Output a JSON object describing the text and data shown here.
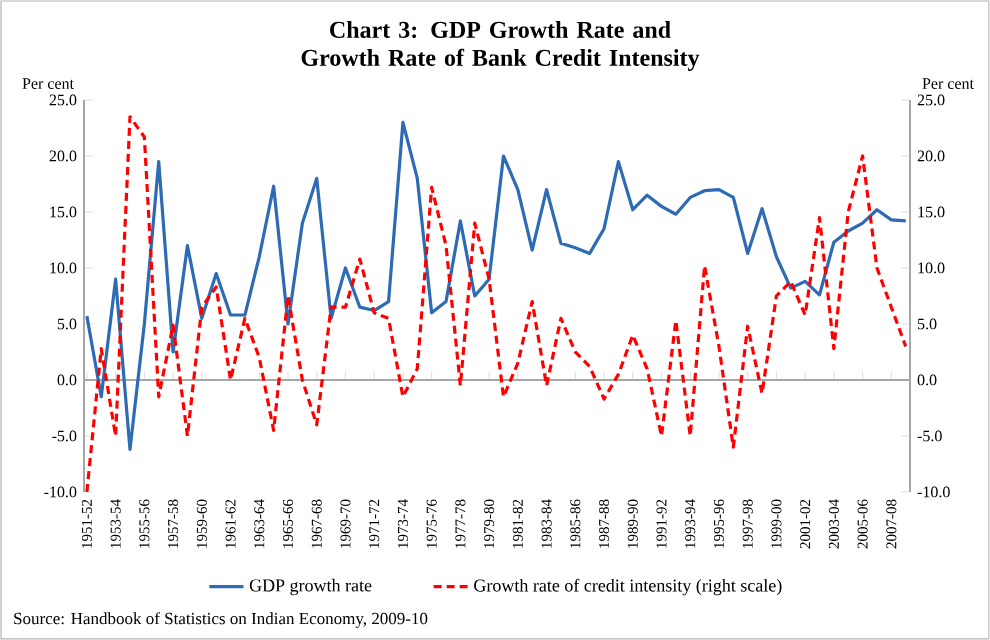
{
  "chart_data": {
    "type": "line",
    "title": "Chart 3: GDP Growth Rate and Growth Rate of Bank Credit Intensity",
    "ylabel": "Per cent",
    "y2label": "Per cent",
    "annotations": [
      "Source: Handbook of Statistics on Indian Economy, 2009-10"
    ],
    "categories": [
      "1951-52",
      null,
      "1953-54",
      null,
      "1955-56",
      null,
      "1957-58",
      null,
      "1959-60",
      null,
      "1961-62",
      null,
      "1963-64",
      null,
      "1965-66",
      null,
      "1967-68",
      null,
      "1969-70",
      null,
      "1971-72",
      null,
      "1973-74",
      null,
      "1975-76",
      null,
      "1977-78",
      null,
      "1979-80",
      null,
      "1981-82",
      null,
      "1983-84",
      null,
      "1985-86",
      null,
      "1987-88",
      null,
      "1989-90",
      null,
      "1991-92",
      null,
      "1993-94",
      null,
      "1995-96",
      null,
      "1997-98",
      null,
      "1999-00",
      null,
      "2001-02",
      null,
      "2003-04",
      null,
      "2005-06",
      null,
      "2007-08",
      null
    ],
    "series": [
      {
        "name": "GDP growth rate",
        "color": "#2e6bb5",
        "line_style": "solid",
        "values": [
          5.7,
          -1.5,
          9.0,
          -6.2,
          5.0,
          19.5,
          2.5,
          12.0,
          5.5,
          9.5,
          5.8,
          5.8,
          11.0,
          17.3,
          5.0,
          14.0,
          18.0,
          5.5,
          10.0,
          6.5,
          6.2,
          7.0,
          23.0,
          18.0,
          6.0,
          7.0,
          14.2,
          7.5,
          9.0,
          20.0,
          17.0,
          11.6,
          17.0,
          12.2,
          11.8,
          11.3,
          13.5,
          19.5,
          15.2,
          16.5,
          15.5,
          14.8,
          16.3,
          16.9,
          17.0,
          16.3,
          11.3,
          15.3,
          11.0,
          8.2,
          8.8,
          7.6,
          12.3,
          13.3,
          14.0,
          15.2,
          14.3,
          14.2
        ]
      },
      {
        "name": "Growth rate of credit intensity (right scale)",
        "color": "#ff0000",
        "line_style": "dashed",
        "axis": "y2",
        "values": [
          -10.0,
          2.8,
          -5.0,
          23.5,
          21.7,
          -1.5,
          4.9,
          -5.0,
          6.5,
          8.3,
          0.0,
          5.5,
          2.0,
          -4.5,
          7.5,
          0.0,
          -4.0,
          6.5,
          6.5,
          10.8,
          6.0,
          5.5,
          -1.5,
          1.0,
          17.2,
          12.0,
          -0.5,
          14.0,
          9.0,
          -1.5,
          1.5,
          7.0,
          -0.5,
          5.5,
          2.5,
          1.2,
          -1.7,
          0.5,
          4.0,
          1.0,
          -5.0,
          5.3,
          -5.0,
          10.2,
          3.0,
          -6.0,
          4.8,
          -1.2,
          7.5,
          8.8,
          5.8,
          14.5,
          2.8,
          15.0,
          20.0,
          10.0,
          6.5,
          3.0
        ]
      }
    ],
    "ylim": [
      -10,
      25
    ],
    "yticks": [
      {
        "value": -10,
        "label": "-10.0"
      },
      {
        "value": -5,
        "label": "-5.0"
      },
      {
        "value": 0,
        "label": "0.0"
      },
      {
        "value": 5,
        "label": "5.0"
      },
      {
        "value": 10,
        "label": "10.0"
      },
      {
        "value": 15,
        "label": "15.0"
      },
      {
        "value": 20,
        "label": "20.0"
      },
      {
        "value": 25,
        "label": "25.0"
      }
    ],
    "y2lim": [
      -10,
      25
    ],
    "y2ticks": [
      {
        "value": -10,
        "label": "-10.0"
      },
      {
        "value": -5,
        "label": "-5.0"
      },
      {
        "value": 0,
        "label": "0.0"
      },
      {
        "value": 5,
        "label": "5.0"
      },
      {
        "value": 10,
        "label": "10.0"
      },
      {
        "value": 15,
        "label": "15.0"
      },
      {
        "value": 20,
        "label": "20.0"
      },
      {
        "value": 25,
        "label": "25.0"
      }
    ],
    "legend": "bottom",
    "marker": "none"
  }
}
